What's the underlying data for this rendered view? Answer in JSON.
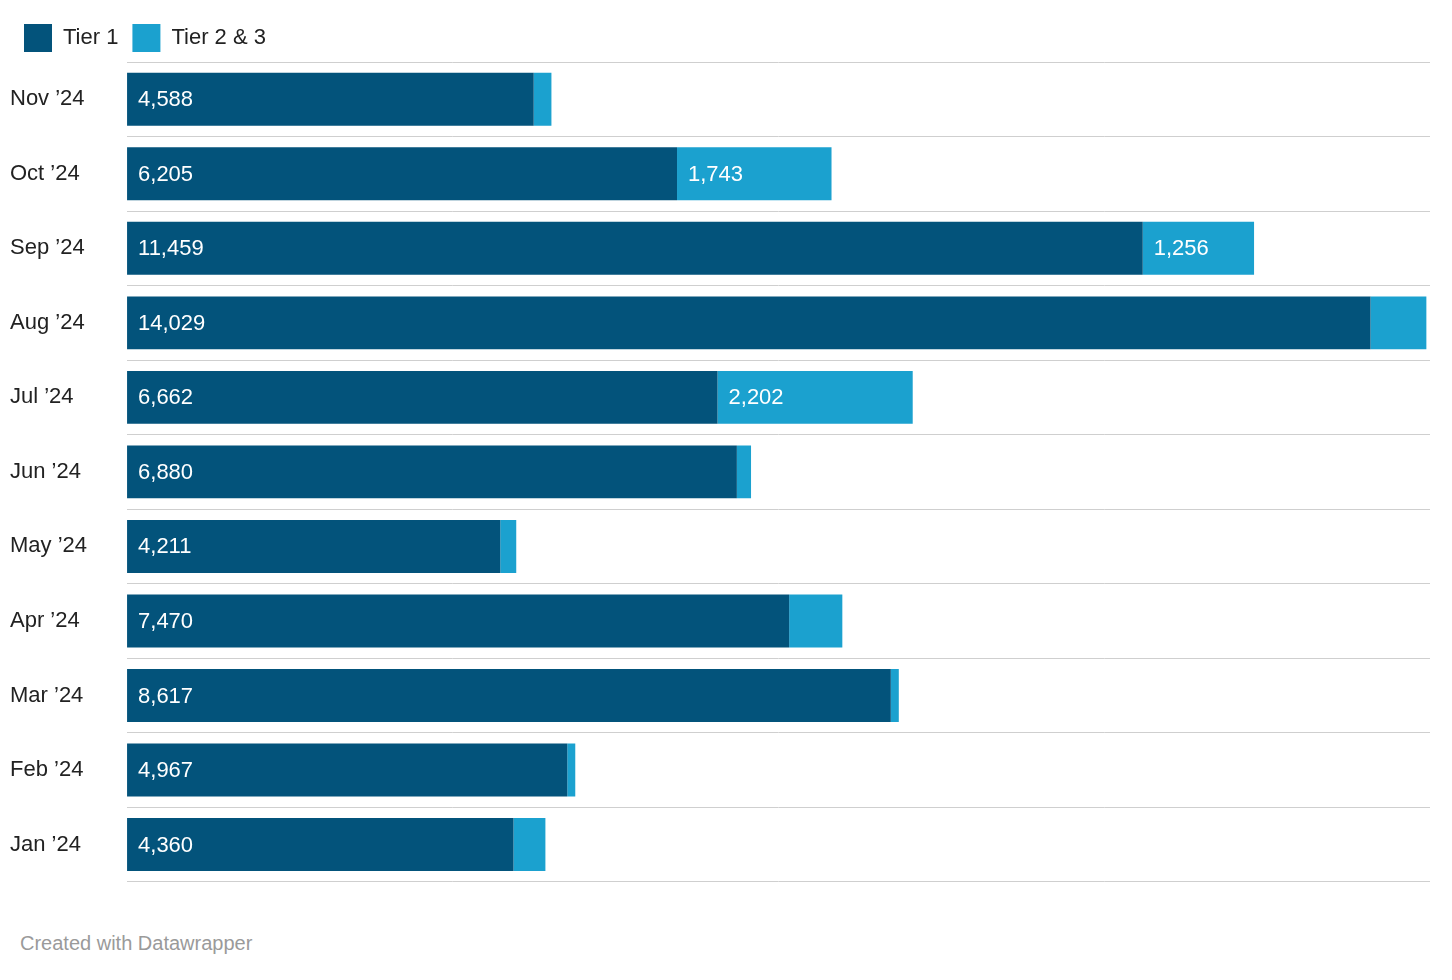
{
  "chart_data": {
    "type": "bar",
    "orientation": "horizontal",
    "stacked": true,
    "caption": "Created with Datawrapper",
    "categories": [
      "Nov ’24",
      "Oct ’24",
      "Sep ’24",
      "Aug ’24",
      "Jul ’24",
      "Jun ’24",
      "May ’24",
      "Apr ’24",
      "Mar ’24",
      "Feb ’24",
      "Jan ’24"
    ],
    "series": [
      {
        "name": "Tier 1",
        "color": "#03537b",
        "values": [
          4588,
          6205,
          11459,
          14029,
          6662,
          6880,
          4211,
          7470,
          8617,
          4967,
          4360
        ],
        "value_labels": [
          "4,588",
          "6,205",
          "11,459",
          "14,029",
          "6,662",
          "6,880",
          "4,211",
          "7,470",
          "8,617",
          "4,967",
          "4,360"
        ]
      },
      {
        "name": "Tier 2 & 3",
        "color": "#1ba1cf",
        "values": [
          200,
          1743,
          1256,
          630,
          2202,
          160,
          180,
          600,
          90,
          90,
          360
        ],
        "value_labels": [
          null,
          "1,743",
          "1,256",
          null,
          "2,202",
          null,
          null,
          null,
          null,
          null,
          null
        ]
      }
    ],
    "xlim": [
      0,
      14700
    ],
    "legend": "top-left",
    "data_labels": true,
    "tick_labels": "y",
    "grid": true
  }
}
